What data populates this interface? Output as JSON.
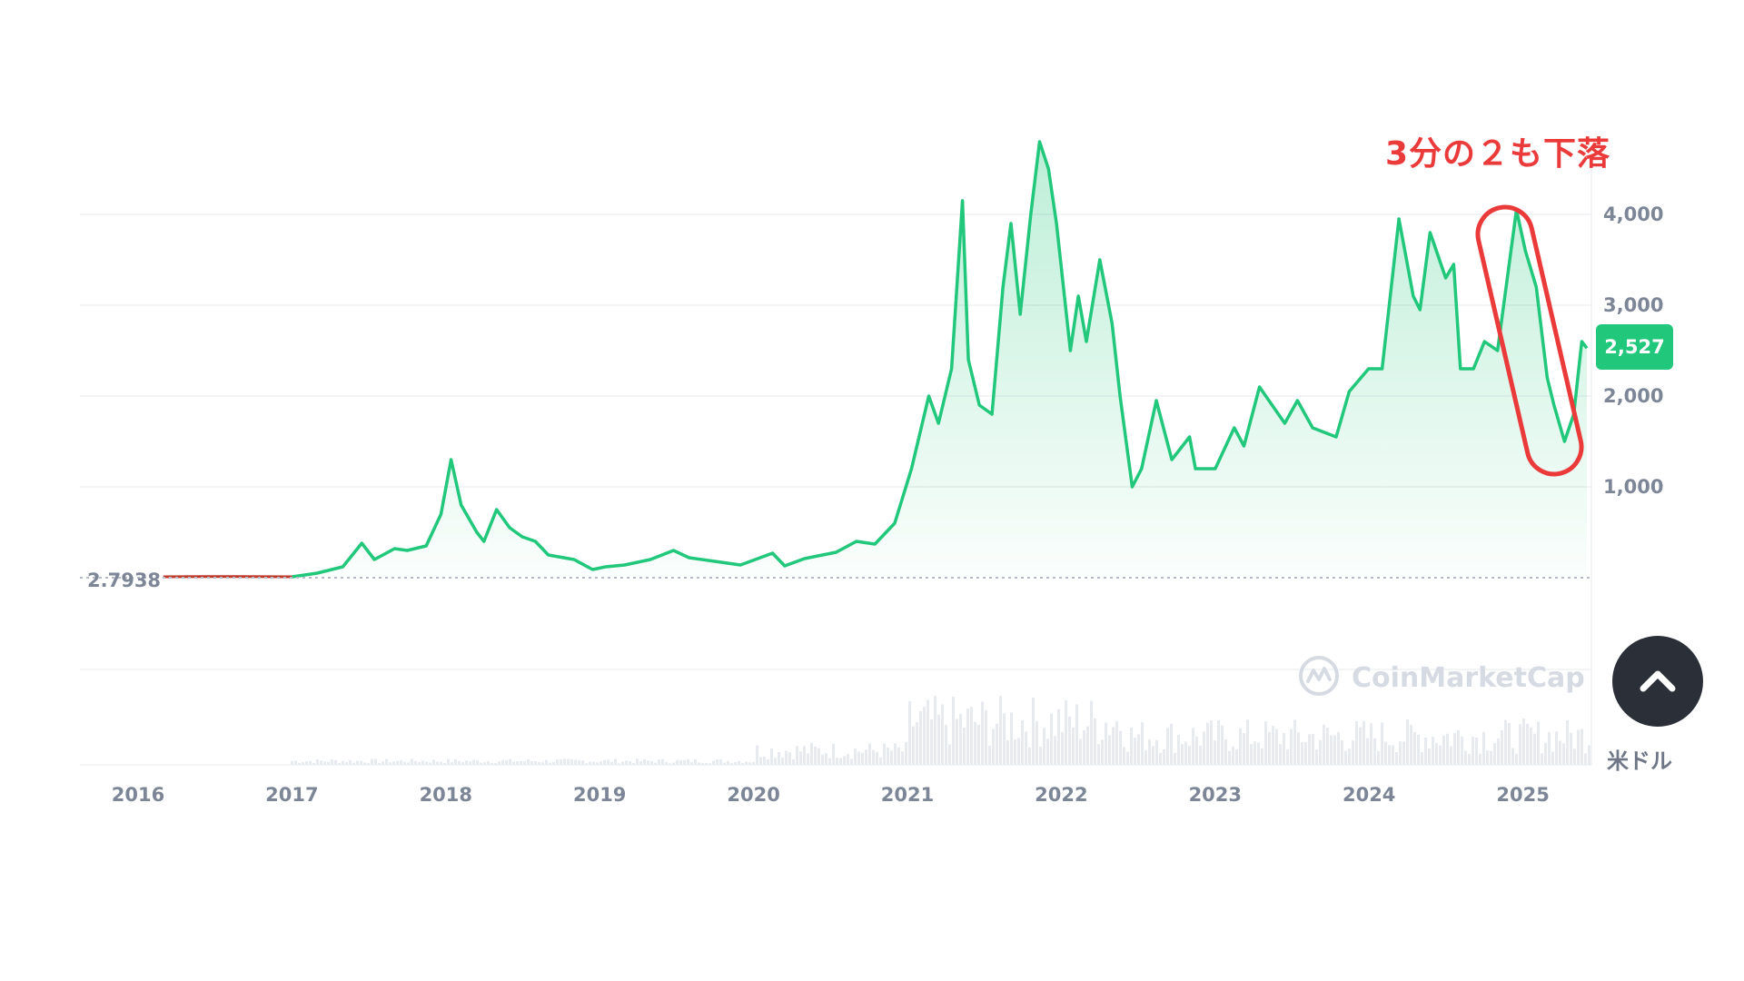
{
  "watermark": {
    "text": "CoinMarketCap",
    "icon": "coinmarketcap-logo-icon"
  },
  "unit_label": "米ドル",
  "annotation": {
    "text": "3分の２も下落",
    "color": "#ea3a3a"
  },
  "current_price_badge": "2,527",
  "scroll_top_icon": "chevron-up-icon",
  "colors": {
    "line": "#21c77a",
    "line_early": "#c0392b",
    "badge": "#21c77a",
    "annotation": "#ea3a3a"
  },
  "chart_data": {
    "type": "area",
    "title": "",
    "xlabel": "",
    "ylabel": "",
    "x_ticks": [
      "2016",
      "2017",
      "2018",
      "2019",
      "2020",
      "2021",
      "2022",
      "2023",
      "2024",
      "2025"
    ],
    "y_ticks": [
      "1,000",
      "2,000",
      "3,000",
      "4,000"
    ],
    "y_tick_values": [
      1000,
      2000,
      3000,
      4000
    ],
    "ylim": [
      0,
      4600
    ],
    "xlim": [
      "2016-01-01",
      "2025-06-30"
    ],
    "baseline_label": "2.7938",
    "baseline_value": 2.7938,
    "current_price": 2527,
    "grid": true,
    "series": [
      {
        "values": [
          [
            "2016-03-01",
            10
          ],
          [
            "2016-06-01",
            12
          ],
          [
            "2016-09-01",
            12
          ],
          [
            "2017-01-01",
            10
          ],
          [
            "2017-03-01",
            50
          ],
          [
            "2017-05-01",
            120
          ],
          [
            "2017-06-15",
            380
          ],
          [
            "2017-07-15",
            200
          ],
          [
            "2017-09-01",
            320
          ],
          [
            "2017-10-01",
            300
          ],
          [
            "2017-11-15",
            350
          ],
          [
            "2017-12-20",
            700
          ],
          [
            "2018-01-13",
            1300
          ],
          [
            "2018-02-06",
            800
          ],
          [
            "2018-03-15",
            500
          ],
          [
            "2018-04-01",
            400
          ],
          [
            "2018-05-01",
            750
          ],
          [
            "2018-06-01",
            550
          ],
          [
            "2018-07-01",
            450
          ],
          [
            "2018-08-01",
            400
          ],
          [
            "2018-09-01",
            250
          ],
          [
            "2018-11-01",
            200
          ],
          [
            "2018-12-15",
            90
          ],
          [
            "2019-01-15",
            120
          ],
          [
            "2019-03-01",
            140
          ],
          [
            "2019-05-01",
            200
          ],
          [
            "2019-06-25",
            300
          ],
          [
            "2019-08-01",
            220
          ],
          [
            "2019-10-01",
            180
          ],
          [
            "2019-12-01",
            140
          ],
          [
            "2020-02-15",
            270
          ],
          [
            "2020-03-15",
            130
          ],
          [
            "2020-05-01",
            210
          ],
          [
            "2020-07-15",
            280
          ],
          [
            "2020-09-01",
            400
          ],
          [
            "2020-10-15",
            370
          ],
          [
            "2020-12-01",
            600
          ],
          [
            "2021-01-10",
            1200
          ],
          [
            "2021-02-20",
            2000
          ],
          [
            "2021-03-15",
            1700
          ],
          [
            "2021-04-15",
            2300
          ],
          [
            "2021-05-11",
            4150
          ],
          [
            "2021-05-25",
            2400
          ],
          [
            "2021-06-20",
            1900
          ],
          [
            "2021-07-20",
            1800
          ],
          [
            "2021-08-15",
            3200
          ],
          [
            "2021-09-03",
            3900
          ],
          [
            "2021-09-25",
            2900
          ],
          [
            "2021-10-20",
            4000
          ],
          [
            "2021-11-10",
            4800
          ],
          [
            "2021-12-01",
            4500
          ],
          [
            "2021-12-20",
            3900
          ],
          [
            "2022-01-22",
            2500
          ],
          [
            "2022-02-10",
            3100
          ],
          [
            "2022-03-01",
            2600
          ],
          [
            "2022-04-02",
            3500
          ],
          [
            "2022-05-01",
            2800
          ],
          [
            "2022-05-20",
            2000
          ],
          [
            "2022-06-18",
            1000
          ],
          [
            "2022-07-10",
            1200
          ],
          [
            "2022-08-14",
            1950
          ],
          [
            "2022-09-20",
            1300
          ],
          [
            "2022-11-01",
            1550
          ],
          [
            "2022-11-15",
            1200
          ],
          [
            "2023-01-01",
            1200
          ],
          [
            "2023-02-15",
            1650
          ],
          [
            "2023-03-10",
            1450
          ],
          [
            "2023-04-16",
            2100
          ],
          [
            "2023-06-15",
            1700
          ],
          [
            "2023-07-15",
            1950
          ],
          [
            "2023-08-20",
            1650
          ],
          [
            "2023-10-15",
            1550
          ],
          [
            "2023-11-15",
            2050
          ],
          [
            "2023-12-31",
            2300
          ],
          [
            "2024-02-01",
            2300
          ],
          [
            "2024-03-12",
            3950
          ],
          [
            "2024-04-15",
            3100
          ],
          [
            "2024-05-01",
            2950
          ],
          [
            "2024-05-25",
            3800
          ],
          [
            "2024-07-01",
            3300
          ],
          [
            "2024-07-20",
            3450
          ],
          [
            "2024-08-05",
            2300
          ],
          [
            "2024-09-05",
            2300
          ],
          [
            "2024-10-01",
            2600
          ],
          [
            "2024-11-01",
            2500
          ],
          [
            "2024-12-16",
            4050
          ],
          [
            "2025-01-06",
            3600
          ],
          [
            "2025-02-01",
            3200
          ],
          [
            "2025-02-27",
            2200
          ],
          [
            "2025-03-15",
            1900
          ],
          [
            "2025-04-09",
            1500
          ],
          [
            "2025-05-01",
            1800
          ],
          [
            "2025-05-20",
            2600
          ],
          [
            "2025-06-01",
            2527
          ]
        ]
      }
    ]
  }
}
